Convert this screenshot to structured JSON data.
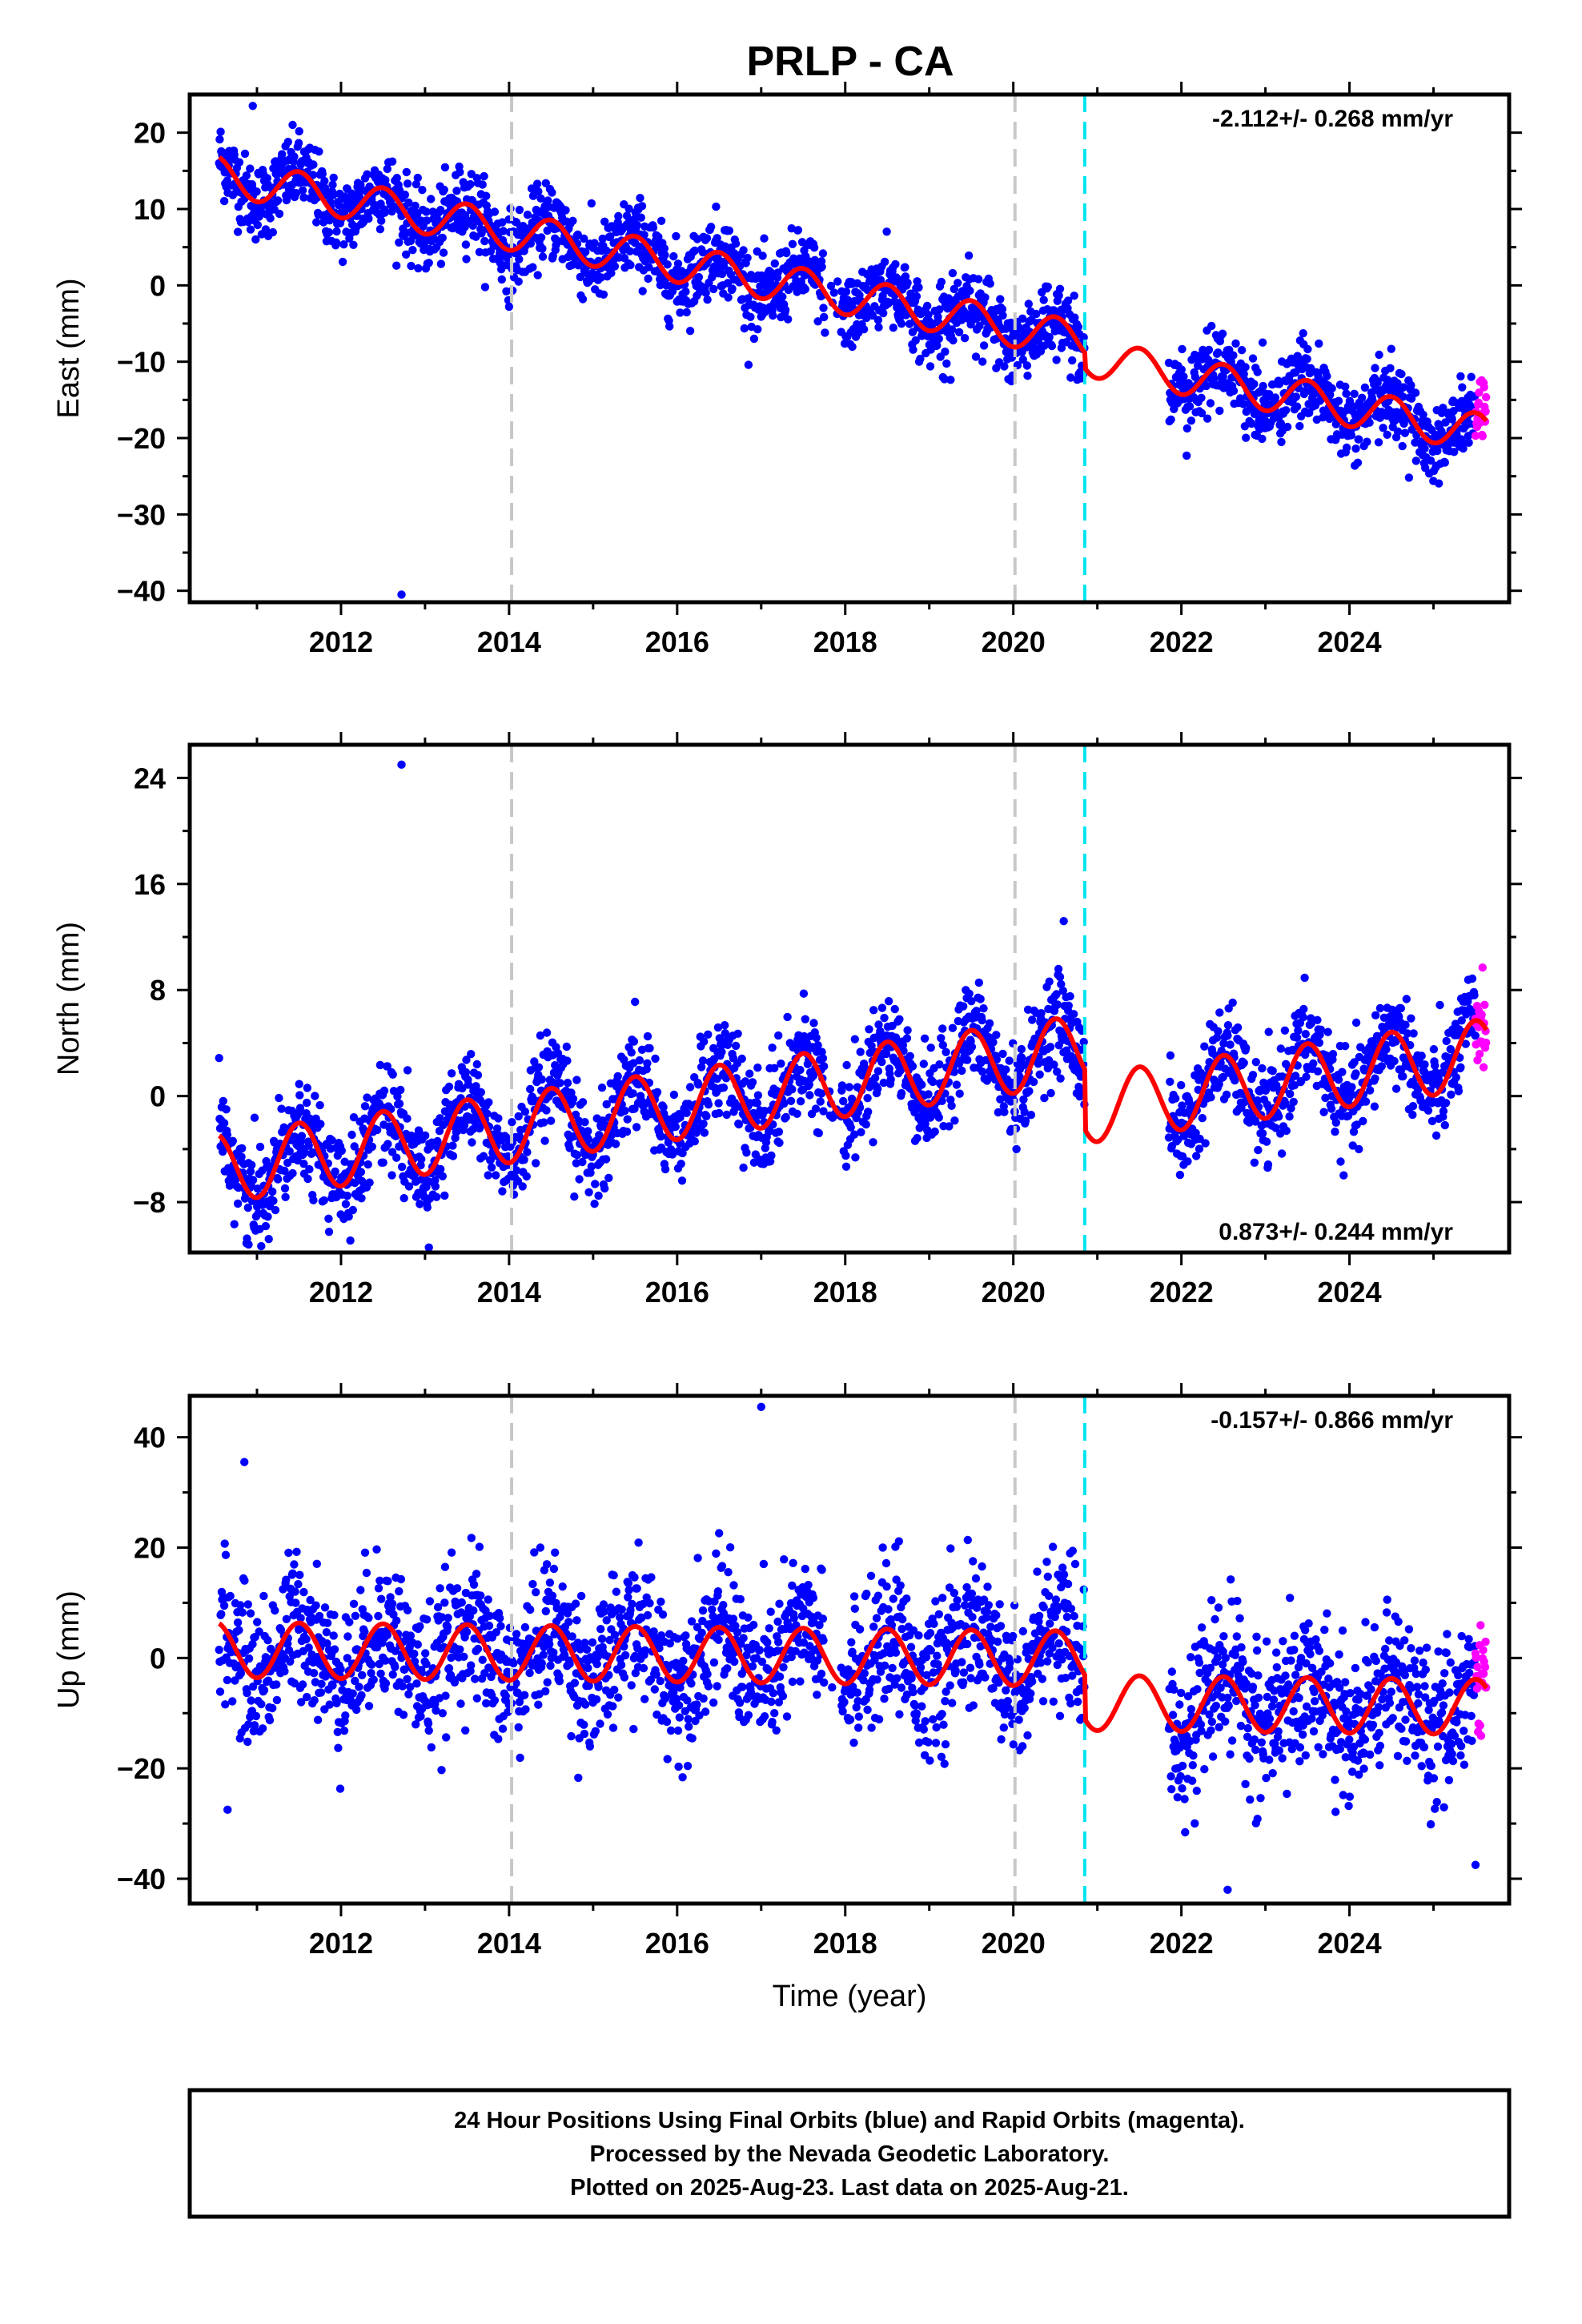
{
  "title": "PRLP - CA",
  "footer": {
    "line1": "24 Hour Positions Using Final Orbits (blue) and Rapid Orbits (magenta).",
    "line2": "Processed by the Nevada Geodetic Laboratory.",
    "line3": "Plotted on 2025-Aug-23. Last data on 2025-Aug-21."
  },
  "colors": {
    "final_orbits": "#0000ff",
    "rapid_orbits": "#ff00ff",
    "model": "#ff0000",
    "gray_markers": "#c8c8c8",
    "cyan_marker": "#00e5ee"
  },
  "chart_data": [
    {
      "type": "scatter",
      "component": "east",
      "ylabel": "East (mm)",
      "xlabel": "",
      "xlim": [
        2010.2,
        2025.9
      ],
      "ylim": [
        -41.5,
        25
      ],
      "xticks": [
        2012,
        2014,
        2016,
        2018,
        2020,
        2022,
        2024
      ],
      "xtick_labels": [
        "2012",
        "2014",
        "2016",
        "2018",
        "2020",
        "2022",
        "2024"
      ],
      "yticks": [
        -40,
        -30,
        -20,
        -10,
        0,
        10,
        20
      ],
      "ytick_labels": [
        "−40",
        "−30",
        "−20",
        "−10",
        "0",
        "10",
        "20"
      ],
      "rate_text": "-2.112+/- 0.268 mm/yr",
      "rate_position": "top-right",
      "trend": {
        "ref_year": 2010.5,
        "intercept": 14.5,
        "rate": -2.112,
        "amplitude": 2.5
      },
      "offsets": [
        {
          "at": 2020.85,
          "jump": -2.0
        }
      ],
      "data_range": [
        2010.55,
        2025.63
      ],
      "gap": [
        2020.85,
        2021.85
      ],
      "scatter_sd": 2.5,
      "outliers": [
        {
          "x": 2012.72,
          "y": -40.5
        },
        {
          "x": 2010.95,
          "y": 23.5
        },
        {
          "x": 2014.0,
          "y": -2.8
        }
      ],
      "rapid_range": [
        2025.5,
        2025.63
      ],
      "vlines": [
        {
          "x": 2014.03,
          "kind": "gray"
        },
        {
          "x": 2020.02,
          "kind": "gray"
        },
        {
          "x": 2020.85,
          "kind": "cyan"
        }
      ]
    },
    {
      "type": "scatter",
      "component": "north",
      "ylabel": "North (mm)",
      "xlabel": "",
      "xlim": [
        2010.2,
        2025.9
      ],
      "ylim": [
        -11.8,
        26.5
      ],
      "xticks": [
        2012,
        2014,
        2016,
        2018,
        2020,
        2022,
        2024
      ],
      "xtick_labels": [
        "2012",
        "2014",
        "2016",
        "2018",
        "2020",
        "2022",
        "2024"
      ],
      "yticks": [
        -8,
        0,
        8,
        16,
        24
      ],
      "ytick_labels": [
        "−8",
        "0",
        "8",
        "16",
        "24"
      ],
      "rate_text": "0.873+/- 0.244 mm/yr",
      "rate_position": "bottom-right",
      "trend": {
        "ref_year": 2010.5,
        "intercept": -5.5,
        "rate": 0.873,
        "amplitude": 2.6
      },
      "offsets": [
        {
          "at": 2020.85,
          "jump": -4.5
        }
      ],
      "data_range": [
        2010.55,
        2025.63
      ],
      "gap": [
        2020.85,
        2021.85
      ],
      "scatter_sd": 1.8,
      "outliers": [
        {
          "x": 2012.72,
          "y": 25.0
        },
        {
          "x": 2020.6,
          "y": 13.2
        },
        {
          "x": 2010.9,
          "y": -11.2
        }
      ],
      "rapid_range": [
        2025.5,
        2025.63
      ],
      "vlines": [
        {
          "x": 2014.03,
          "kind": "gray"
        },
        {
          "x": 2020.02,
          "kind": "gray"
        },
        {
          "x": 2020.85,
          "kind": "cyan"
        }
      ]
    },
    {
      "type": "scatter",
      "component": "up",
      "ylabel": "Up (mm)",
      "xlabel": "Time (year)",
      "xlim": [
        2010.2,
        2025.9
      ],
      "ylim": [
        -44.5,
        47.5
      ],
      "xticks": [
        2012,
        2014,
        2016,
        2018,
        2020,
        2022,
        2024
      ],
      "xtick_labels": [
        "2012",
        "2014",
        "2016",
        "2018",
        "2020",
        "2022",
        "2024"
      ],
      "yticks": [
        -40,
        -20,
        0,
        20,
        40
      ],
      "ytick_labels": [
        "−40",
        "−20",
        "0",
        "20",
        "40"
      ],
      "rate_text": "-0.157+/- 0.866 mm/yr",
      "rate_position": "top-right",
      "trend": {
        "ref_year": 2010.5,
        "intercept": 1.5,
        "rate": -0.157,
        "amplitude": 5.0
      },
      "offsets": [
        {
          "at": 2020.85,
          "jump": -8.0
        }
      ],
      "data_range": [
        2010.55,
        2025.63
      ],
      "gap": [
        2020.85,
        2021.85
      ],
      "scatter_sd": 6.5,
      "outliers": [
        {
          "x": 2017.0,
          "y": 45.5
        },
        {
          "x": 2010.85,
          "y": 35.5
        },
        {
          "x": 2022.55,
          "y": -42.0
        },
        {
          "x": 2025.5,
          "y": -37.5
        },
        {
          "x": 2010.65,
          "y": -27.5
        }
      ],
      "rapid_range": [
        2025.5,
        2025.63
      ],
      "vlines": [
        {
          "x": 2014.03,
          "kind": "gray"
        },
        {
          "x": 2020.02,
          "kind": "gray"
        },
        {
          "x": 2020.85,
          "kind": "cyan"
        }
      ]
    }
  ]
}
